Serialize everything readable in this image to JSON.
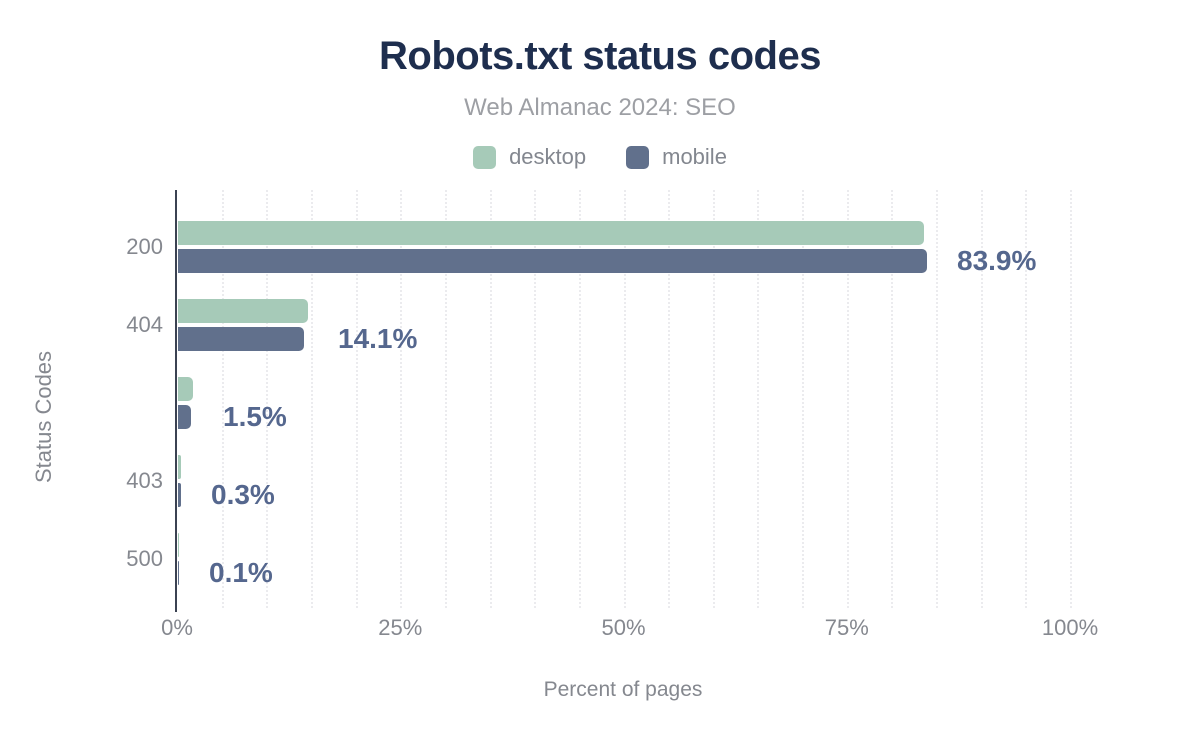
{
  "header": {
    "title": "Robots.txt status codes",
    "subtitle": "Web Almanac 2024: SEO"
  },
  "chart_data": {
    "type": "bar",
    "orientation": "horizontal",
    "title": "Robots.txt status codes",
    "subtitle": "Web Almanac 2024: SEO",
    "categories": [
      "200",
      "404",
      "",
      "403",
      "500"
    ],
    "series": [
      {
        "name": "desktop",
        "color": "#a6cab8",
        "values": [
          83.5,
          14.6,
          1.7,
          0.3,
          0.1
        ]
      },
      {
        "name": "mobile",
        "color": "#61708c",
        "values": [
          83.9,
          14.1,
          1.5,
          0.3,
          0.1
        ]
      }
    ],
    "value_labels": [
      "83.9%",
      "14.1%",
      "1.5%",
      "0.3%",
      "0.1%"
    ],
    "value_labels_series": "mobile",
    "xlabel": "Percent of pages",
    "ylabel": "Status Codes",
    "x_ticks": [
      "0%",
      "25%",
      "50%",
      "75%",
      "100%"
    ],
    "x_tick_values": [
      0,
      25,
      50,
      75,
      100
    ],
    "xlim": [
      0,
      105
    ],
    "grid_step_percent": 5,
    "grid": "on",
    "legend_position": "top"
  },
  "colors": {
    "title": "#1e2e4e",
    "subtitle": "#9d9fa4",
    "axis_text": "#85888f",
    "value_label": "#55678e",
    "axis_line": "#3b4252",
    "gridline": "#ebebee",
    "desktop": "#a6cab8",
    "mobile": "#61708c",
    "background": "#ffffff"
  }
}
